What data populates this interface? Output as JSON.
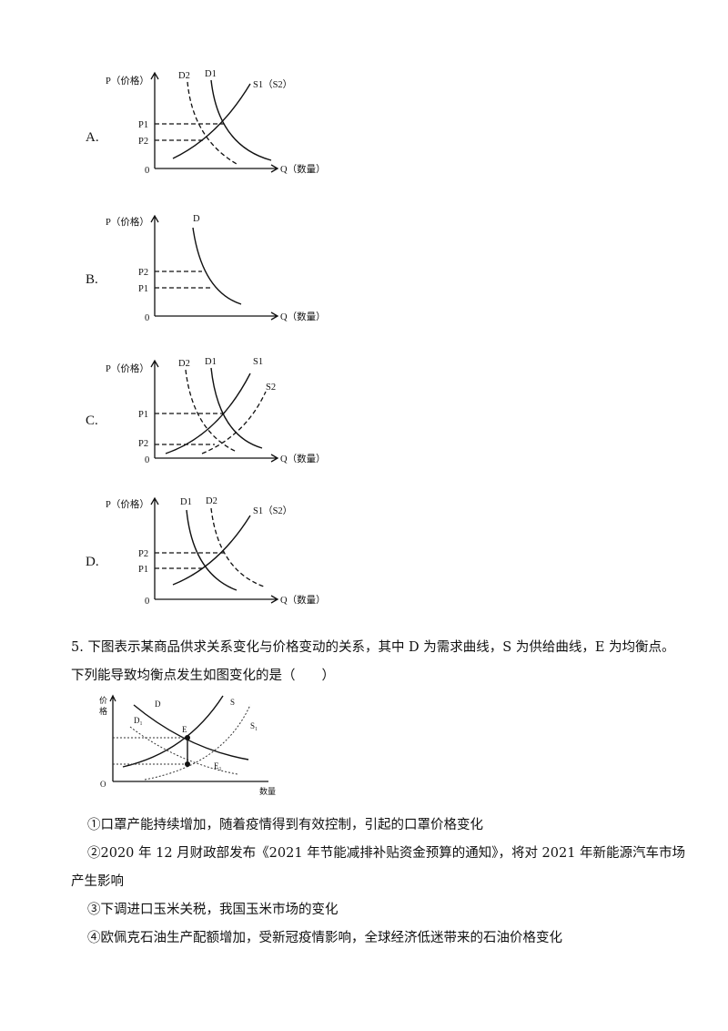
{
  "options": [
    {
      "label": "A.",
      "p_axis": "P（价格）",
      "q_axis": "Q（数量）",
      "origin": "0",
      "curves": {
        "d_dashed": "D2",
        "d_solid": "D1",
        "s": "S1（S2）"
      },
      "prices": {
        "upper": "P1",
        "lower": "P2"
      }
    },
    {
      "label": "B.",
      "p_axis": "P（价格）",
      "q_axis": "Q（数量）",
      "origin": "0",
      "curves": {
        "d": "D"
      },
      "prices": {
        "upper": "P2",
        "lower": "P1"
      }
    },
    {
      "label": "C.",
      "p_axis": "P（价格）",
      "q_axis": "Q（数量）",
      "origin": "0",
      "curves": {
        "d_dashed": "D2",
        "d_solid": "D1",
        "s1": "S1",
        "s2": "S2"
      },
      "prices": {
        "upper": "P1",
        "lower": "P2"
      }
    },
    {
      "label": "D.",
      "p_axis": "P（价格）",
      "q_axis": "Q（数量）",
      "origin": "0",
      "curves": {
        "d_solid": "D1",
        "d_dashed": "D2",
        "s": "S1（S2）"
      },
      "prices": {
        "upper": "P2",
        "lower": "P1"
      }
    }
  ],
  "question5": {
    "line1": "5. 下图表示某商品供求关系变化与价格变动的关系，其中 D 为需求曲线，S 为供给曲线，E 为均衡点。",
    "line2": "下列能导致均衡点发生如图变化的是（　　）",
    "figure": {
      "y_axis_char1": "价",
      "y_axis_char2": "格",
      "x_axis": "数量",
      "origin": "O",
      "labels": {
        "d": "D",
        "s": "S",
        "d1": "D₁",
        "s1": "S₁",
        "e": "E",
        "e1": "E₁"
      }
    },
    "items": [
      "①口罩产能持续增加，随着疫情得到有效控制，引起的口罩价格变化",
      "②2020 年 12 月财政部发布《2021 年节能减排补贴资金预算的通知》，将对 2021 年新能源汽车市场",
      "产生影响",
      "③下调进口玉米关税，我国玉米市场的变化",
      "④欧佩克石油生产配额增加，受新冠疫情影响，全球经济低迷带来的石油价格变化"
    ]
  }
}
